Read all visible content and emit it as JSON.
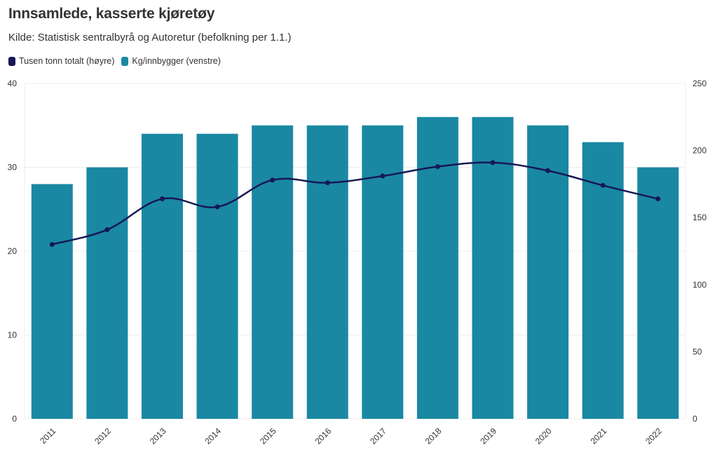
{
  "header": {
    "title": "Innsamlede, kasserte kjøretøy",
    "subtitle": "Kilde: Statistisk sentralbyrå og Autoretur (befolkning per 1.1.)"
  },
  "legend": [
    {
      "label": "Tusen tonn totalt (høyre)",
      "color": "#151854"
    },
    {
      "label": "Kg/innbygger (venstre)",
      "color": "#1a88a2"
    }
  ],
  "chart_data": {
    "type": "bar+line",
    "title": "Innsamlede, kasserte kjøretøy",
    "categories": [
      "2011",
      "2012",
      "2013",
      "2014",
      "2015",
      "2016",
      "2017",
      "2018",
      "2019",
      "2020",
      "2021",
      "2022"
    ],
    "series": [
      {
        "name": "Kg/innbygger (venstre)",
        "type": "bar",
        "axis": "left",
        "color": "#1a88a2",
        "values": [
          28,
          30,
          34,
          34,
          35,
          35,
          35,
          36,
          36,
          35,
          33,
          30
        ]
      },
      {
        "name": "Tusen tonn totalt (høyre)",
        "type": "line",
        "axis": "right",
        "color": "#151854",
        "values": [
          130,
          141,
          164,
          158,
          178,
          176,
          181,
          188,
          191,
          185,
          174,
          164
        ]
      }
    ],
    "left_axis": {
      "min": 0,
      "max": 40,
      "ticks": [
        "0",
        "10",
        "20",
        "30",
        "40"
      ]
    },
    "right_axis": {
      "min": 0,
      "max": 250,
      "ticks": [
        "0",
        "50",
        "100",
        "150",
        "200",
        "250"
      ]
    },
    "grid": true
  }
}
